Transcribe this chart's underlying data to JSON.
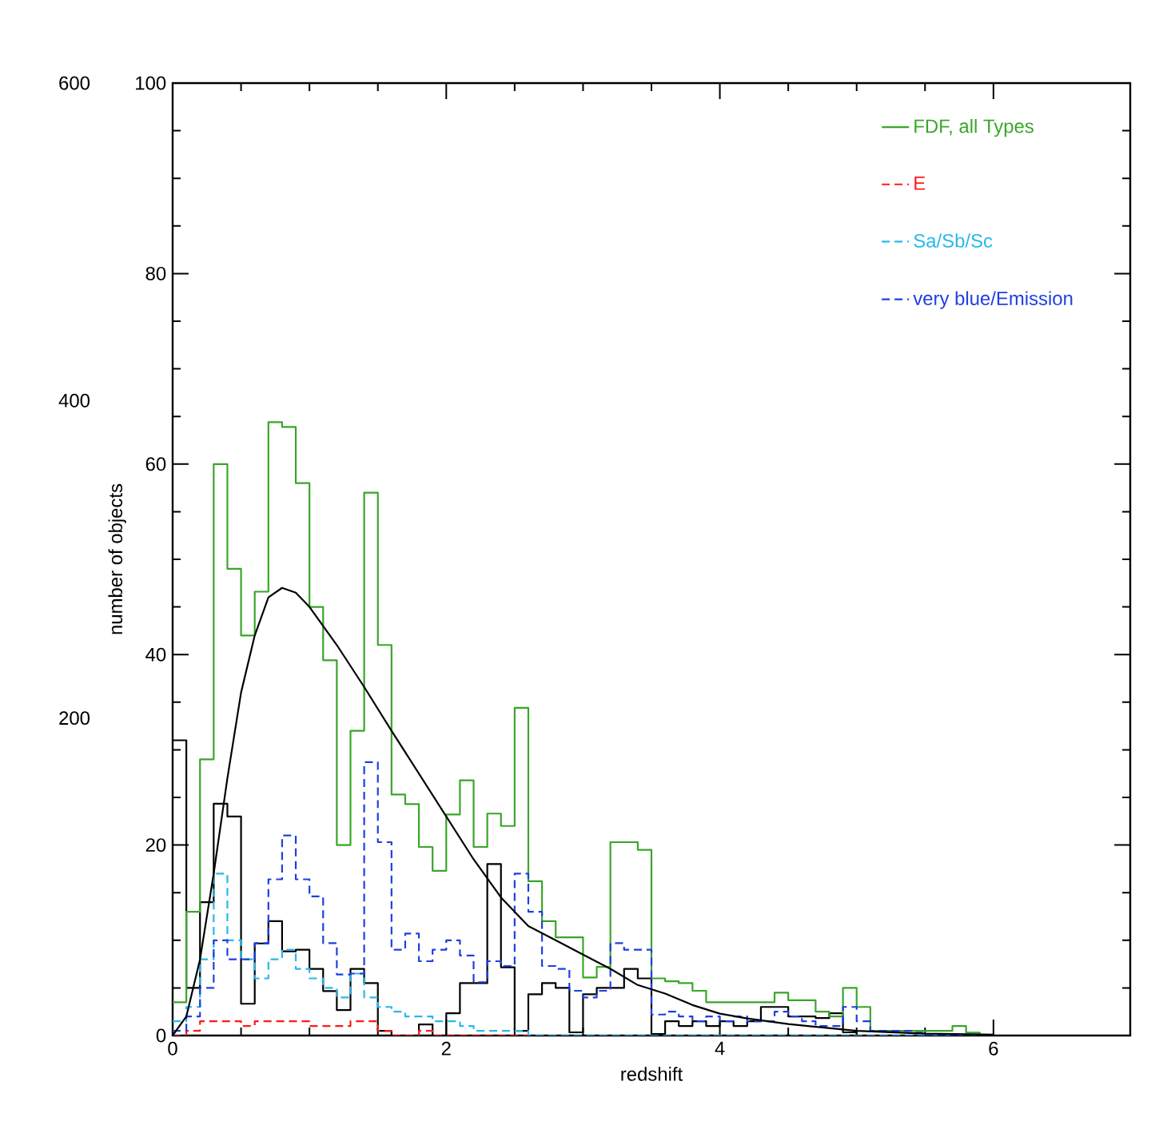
{
  "chart_data": {
    "type": "histogram",
    "xlabel": "redshift",
    "ylabel": "number of objects",
    "bins": [
      0,
      0.1,
      0.2,
      0.3,
      0.4,
      0.5,
      0.6,
      0.7,
      0.8,
      0.9,
      1.0,
      1.1,
      1.2,
      1.3,
      1.4,
      1.5,
      1.6,
      1.7,
      1.8,
      1.9,
      2.0,
      2.1,
      2.2,
      2.3,
      2.4,
      2.5,
      2.6,
      2.7,
      2.8,
      2.9,
      3.0,
      3.1,
      3.2,
      3.3,
      3.4,
      3.5,
      3.6,
      3.7,
      3.8,
      3.9,
      4.0,
      4.1,
      4.2,
      4.3,
      4.4,
      4.5,
      4.6,
      4.7,
      4.8,
      4.9,
      5.0,
      5.1,
      5.2,
      5.3,
      5.4,
      5.5,
      5.6,
      5.7,
      5.8,
      5.9,
      6.0
    ],
    "xlim": [
      0,
      7
    ],
    "xticks": [
      0,
      2,
      4,
      6
    ],
    "ylim": [
      0,
      100
    ],
    "yticks": [
      0,
      20,
      40,
      60,
      80,
      100
    ],
    "y2lim": [
      0,
      600
    ],
    "y2ticks": [
      200,
      400,
      600
    ],
    "legend": "top right",
    "marker": "none",
    "series": [
      {
        "name": "FDF, all Types",
        "color": "#3aa52a",
        "line_style": "solid",
        "values": [
          3.5,
          13,
          29,
          60,
          49,
          42,
          46.6,
          64.4,
          63.9,
          58,
          45,
          39.4,
          20,
          32,
          57,
          41,
          25.3,
          24.3,
          19.8,
          17.3,
          23.2,
          26.8,
          19.8,
          23.3,
          22,
          34.4,
          16.2,
          12,
          10.3,
          10.3,
          6.1,
          7.2,
          20.3,
          20.3,
          19.5,
          6,
          5.7,
          5.5,
          4.7,
          3.5,
          3.5,
          3.5,
          3.5,
          3.5,
          4.5,
          3.7,
          3.7,
          2.5,
          2,
          5,
          3,
          0.5,
          0.5,
          0.5,
          0.5,
          0.5,
          0.5,
          1,
          0.3,
          0
        ]
      },
      {
        "name": "E",
        "color": "#ff1a1a",
        "line_style": "dashed",
        "values": [
          0,
          0.5,
          1.5,
          1.5,
          1.5,
          1,
          1.5,
          1.5,
          1.5,
          1.5,
          1,
          1,
          1,
          1.5,
          1.5,
          0.5,
          0,
          0,
          0.5,
          0,
          0,
          0,
          0,
          0,
          0,
          0,
          0,
          0,
          0,
          0,
          0,
          0,
          0,
          0,
          0,
          0,
          0,
          0,
          0,
          0,
          0,
          0,
          0,
          0,
          0,
          0,
          0,
          0,
          0,
          0,
          0,
          0,
          0,
          0,
          0,
          0,
          0,
          0,
          0,
          0
        ]
      },
      {
        "name": "Sa/Sb/Sc",
        "color": "#27b8ea",
        "line_style": "dashed",
        "values": [
          1.5,
          3,
          8,
          17,
          10,
          8,
          6,
          8,
          9,
          7,
          6,
          5,
          4,
          6.5,
          4,
          3,
          2.5,
          2,
          2,
          1.5,
          1.5,
          1,
          0.5,
          0.5,
          0.5,
          0.5,
          0,
          0,
          0,
          0,
          0,
          0,
          0,
          0,
          0,
          0,
          0,
          0,
          0,
          0,
          0,
          0,
          0,
          0,
          0,
          0,
          0,
          0,
          0,
          0,
          0,
          0,
          0,
          0,
          0,
          0,
          0,
          0,
          0,
          0
        ]
      },
      {
        "name": "very blue/Emission",
        "color": "#1f3fe0",
        "line_style": "dashed",
        "values": [
          0.5,
          2,
          5,
          10,
          8,
          8,
          9.7,
          16.4,
          21,
          16.4,
          14.6,
          9.7,
          6.4,
          6.5,
          28.7,
          20.3,
          9,
          10.7,
          7.8,
          9,
          10,
          8.4,
          5.6,
          7.8,
          7.3,
          17,
          13,
          7.3,
          7,
          4.7,
          4,
          4.7,
          9.7,
          9,
          9,
          2.2,
          2.5,
          2,
          1.5,
          2,
          1.5,
          2,
          1.5,
          1.5,
          2.5,
          2,
          1.5,
          1,
          1,
          3,
          1.5,
          0.5,
          0.5,
          0.5,
          0.3,
          0,
          0,
          0,
          0,
          0
        ]
      },
      {
        "color": "#000000",
        "line_style": "solid",
        "axis": "y2",
        "values": [
          186,
          30,
          84,
          146,
          138,
          20,
          58,
          72,
          53,
          54,
          42,
          28,
          16,
          42,
          33,
          3,
          0,
          0,
          7,
          0,
          14,
          33,
          33,
          108,
          43,
          3,
          26,
          33,
          30,
          2,
          26,
          30,
          30,
          42,
          36,
          1,
          9,
          6,
          9,
          6,
          9,
          6,
          9,
          18,
          18,
          12,
          12,
          11,
          14,
          2,
          0,
          0,
          0,
          0,
          0,
          0,
          0,
          0,
          0,
          0
        ]
      },
      {
        "type": "line",
        "color": "#000000",
        "line_style": "solid",
        "x": [
          0,
          0.1,
          0.2,
          0.3,
          0.4,
          0.5,
          0.6,
          0.7,
          0.8,
          0.9,
          1.0,
          1.2,
          1.4,
          1.6,
          1.8,
          2.0,
          2.2,
          2.4,
          2.6,
          2.8,
          3.0,
          3.2,
          3.4,
          3.6,
          3.8,
          4.0,
          4.2,
          4.5,
          5.0,
          5.5,
          6.0
        ],
        "values": [
          0,
          2,
          8,
          17,
          27,
          36,
          42,
          46,
          47,
          46.5,
          45,
          41,
          36.6,
          32,
          27.5,
          23,
          18.5,
          14.5,
          11.5,
          10,
          8.5,
          7,
          5.3,
          4.4,
          3.2,
          2.3,
          1.8,
          1.2,
          0.5,
          0.2,
          0.1
        ]
      }
    ]
  }
}
